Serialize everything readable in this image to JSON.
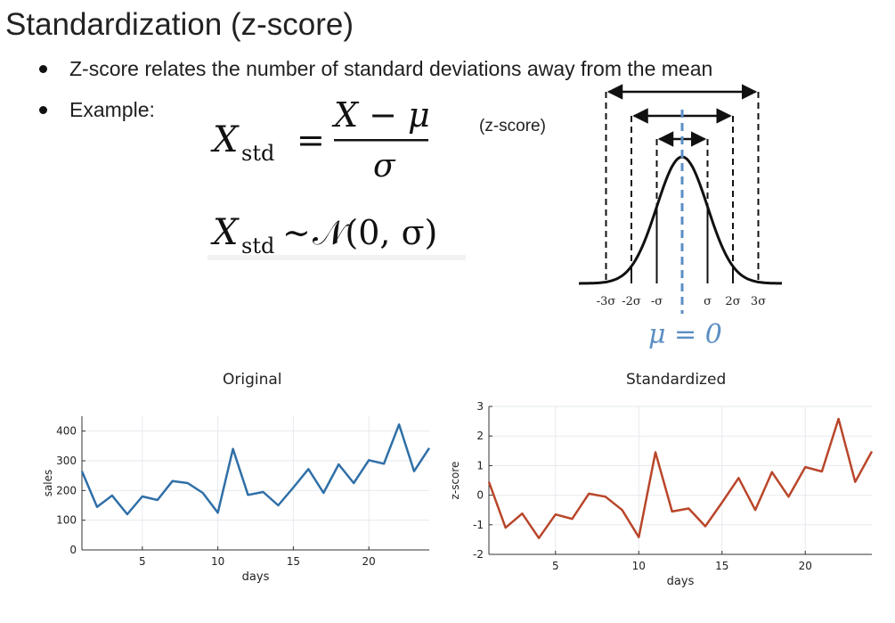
{
  "slide": {
    "title": "Standardization (z-score)",
    "bullets": [
      "Z-score relates the number of standard  deviations away from the mean",
      "Example:"
    ],
    "zscore_label": "(z-score)"
  },
  "formula": {
    "line1": {
      "lhs_var": "X",
      "lhs_sub": "std",
      "op": "=",
      "numerator": "X − μ",
      "denominator": "σ"
    },
    "line2": {
      "lhs_var": "X",
      "lhs_sub": "std",
      "op": "∼",
      "rhs": "𝒩(0, σ)"
    }
  },
  "bell_curve": {
    "tick_labels": [
      "-3σ",
      "-2σ",
      "-σ",
      "σ",
      "2σ",
      "3σ"
    ],
    "mean_label": "μ = 0",
    "mean_color": "#5b8ec4",
    "curve_color": "#111111"
  },
  "chart_data": [
    {
      "type": "line",
      "title": "Original",
      "xlabel": "days",
      "ylabel": "sales",
      "x": [
        1,
        2,
        3,
        4,
        5,
        6,
        7,
        8,
        9,
        10,
        11,
        12,
        13,
        14,
        15,
        16,
        17,
        18,
        19,
        20,
        21,
        22,
        23,
        24
      ],
      "series": [
        {
          "values": [
            265,
            145,
            183,
            120,
            180,
            168,
            232,
            225,
            192,
            125,
            340,
            185,
            195,
            150,
            210,
            272,
            192,
            288,
            225,
            302,
            290,
            422,
            265,
            343
          ],
          "color": "#2f6fa7"
        }
      ],
      "xlim": [
        1,
        24
      ],
      "ylim": [
        0,
        450
      ],
      "xticks": [
        5,
        10,
        15,
        20
      ],
      "yticks": [
        0,
        100,
        200,
        300,
        400
      ],
      "grid": true
    },
    {
      "type": "line",
      "title": "Standardized",
      "xlabel": "days",
      "ylabel": "z-score",
      "x": [
        1,
        2,
        3,
        4,
        5,
        6,
        7,
        8,
        9,
        10,
        11,
        12,
        13,
        14,
        15,
        16,
        17,
        18,
        19,
        20,
        21,
        22,
        23,
        24
      ],
      "series": [
        {
          "values": [
            0.45,
            -1.1,
            -0.62,
            -1.45,
            -0.65,
            -0.8,
            0.05,
            -0.05,
            -0.5,
            -1.42,
            1.45,
            -0.55,
            -0.45,
            -1.05,
            -0.25,
            0.58,
            -0.5,
            0.78,
            -0.05,
            0.95,
            0.8,
            2.58,
            0.45,
            1.48
          ],
          "color": "#b9462a"
        }
      ],
      "xlim": [
        1,
        24
      ],
      "ylim": [
        -2,
        3
      ],
      "xticks": [
        5,
        10,
        15,
        20
      ],
      "yticks": [
        -2,
        -1,
        0,
        1,
        2,
        3
      ],
      "grid": true
    }
  ]
}
